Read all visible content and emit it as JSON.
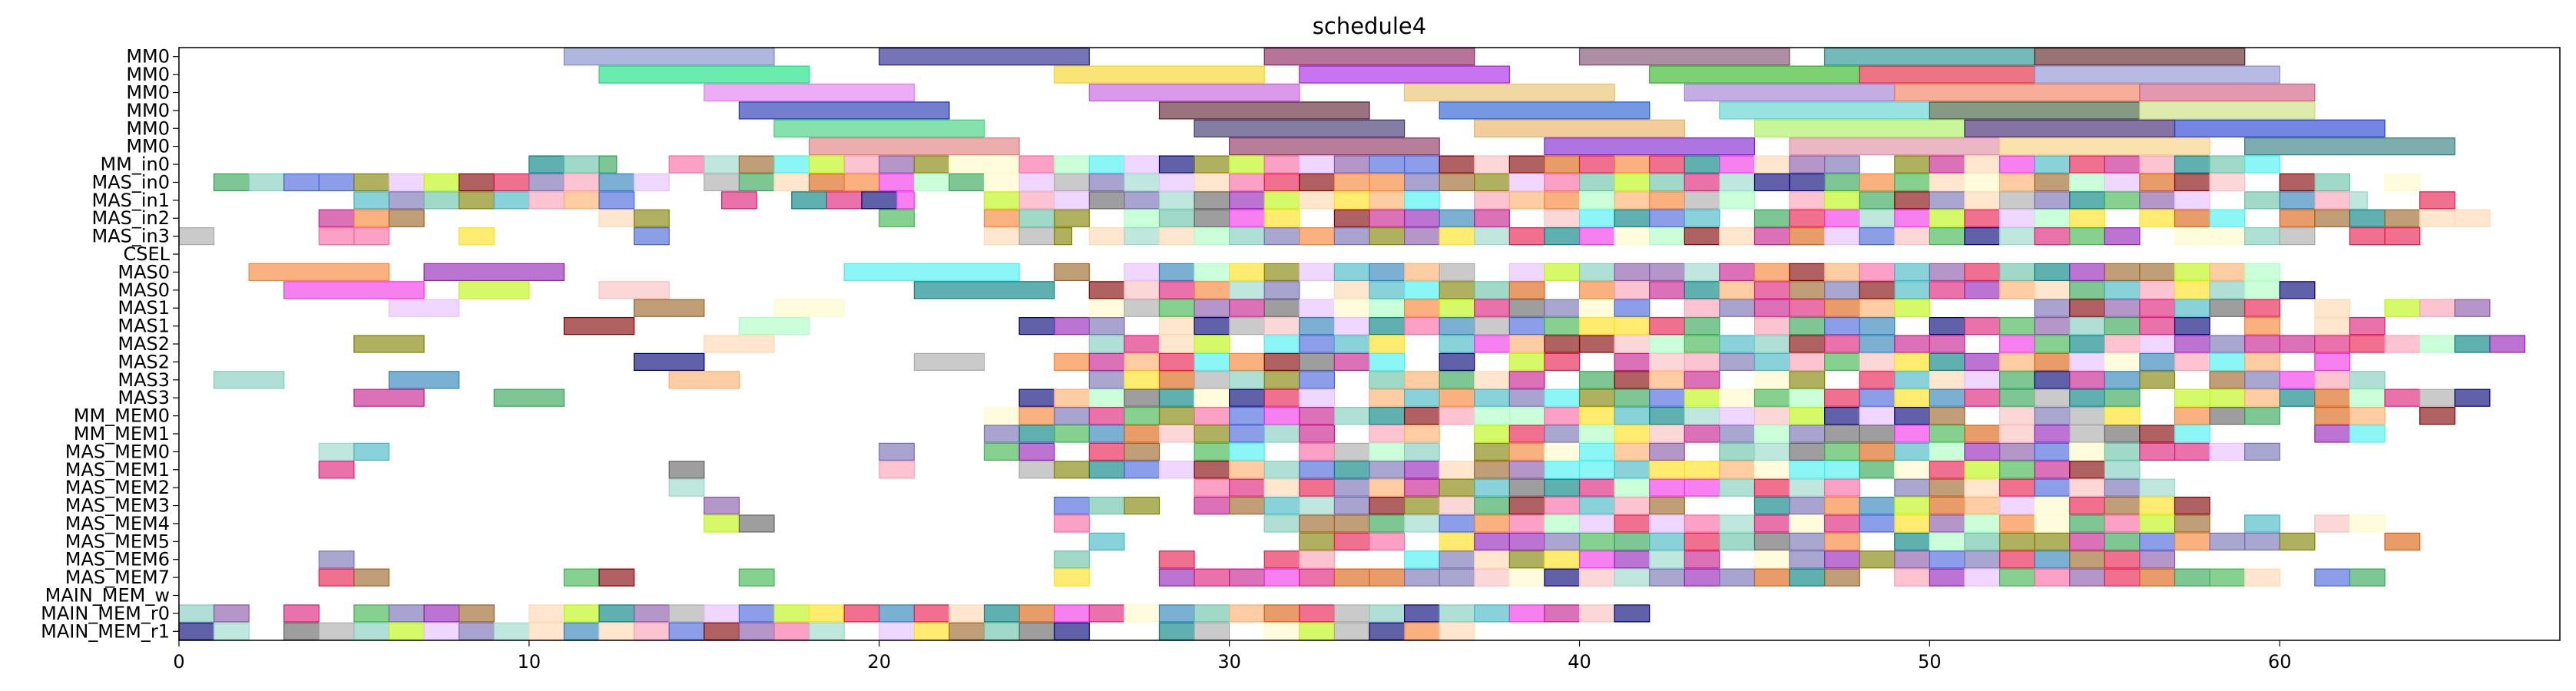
{
  "chart_data": {
    "type": "gantt",
    "title": "schedule4",
    "xlabel": "",
    "ylabel": "",
    "xlim": [
      0,
      68
    ],
    "x_ticks": [
      0,
      10,
      20,
      30,
      40,
      50,
      60
    ],
    "grid": false,
    "legend": "none",
    "rows": [
      "MM0",
      "MM0",
      "MM0",
      "MM0",
      "MM0",
      "MM0",
      "MM_in0",
      "MAS_in0",
      "MAS_in1",
      "MAS_in2",
      "MAS_in3",
      "CSEL",
      "MAS0",
      "MAS0",
      "MAS1",
      "MAS1",
      "MAS2",
      "MAS2",
      "MAS3",
      "MAS3",
      "MM_MEM0",
      "MM_MEM1",
      "MAS_MEM0",
      "MAS_MEM1",
      "MAS_MEM2",
      "MAS_MEM3",
      "MAS_MEM4",
      "MAS_MEM5",
      "MAS_MEM6",
      "MAS_MEM7",
      "MAIN_MEM_w",
      "MAIN_MEM_r0",
      "MAIN_MEM_r1"
    ],
    "bar_opacity": 0.62,
    "explicit_tasks": [
      [
        0,
        11,
        17,
        "#7f8bcc"
      ],
      [
        0,
        20,
        26,
        "#1f1f8a"
      ],
      [
        0,
        31,
        37,
        "#8a1f5a"
      ],
      [
        0,
        40,
        46,
        "#7a4a6a"
      ],
      [
        0,
        47,
        53,
        "#1f8f8f"
      ],
      [
        0,
        53,
        59,
        "#5a1f1f"
      ],
      [
        1,
        12,
        18,
        "#0fe07a"
      ],
      [
        1,
        25,
        31,
        "#f5d520"
      ],
      [
        1,
        32,
        38,
        "#a61fe6"
      ],
      [
        1,
        42,
        48,
        "#2db41f"
      ],
      [
        1,
        48,
        53,
        "#e01f3a"
      ],
      [
        1,
        53,
        60,
        "#8a8fd0"
      ],
      [
        2,
        15,
        21,
        "#e07af0"
      ],
      [
        2,
        26,
        32,
        "#c55ae0"
      ],
      [
        2,
        35,
        41,
        "#e8c06a"
      ],
      [
        2,
        43,
        49,
        "#a07ad0"
      ],
      [
        2,
        49,
        56,
        "#f07a5a"
      ],
      [
        2,
        56,
        61,
        "#d05a80"
      ],
      [
        3,
        16,
        22,
        "#1f2fb0"
      ],
      [
        3,
        28,
        34,
        "#5a1f2f"
      ],
      [
        3,
        36,
        42,
        "#1f5ad0"
      ],
      [
        3,
        44,
        50,
        "#5ad0d0"
      ],
      [
        3,
        50,
        56,
        "#3a5a3a"
      ],
      [
        3,
        56,
        61,
        "#c8e07a"
      ],
      [
        4,
        17,
        23,
        "#3ad07a"
      ],
      [
        4,
        29,
        35,
        "#3a2f6a"
      ],
      [
        4,
        37,
        43,
        "#e8b05a"
      ],
      [
        4,
        45,
        51,
        "#a8f05a"
      ],
      [
        4,
        51,
        57,
        "#3a1f6a"
      ],
      [
        4,
        57,
        63,
        "#1f3ad0"
      ],
      [
        5,
        18,
        24,
        "#e07a7a"
      ],
      [
        5,
        30,
        36,
        "#8a2f5a"
      ],
      [
        5,
        39,
        45,
        "#7a1fd0"
      ],
      [
        5,
        46,
        52,
        "#e08aa0"
      ],
      [
        5,
        52,
        58,
        "#f5d07a"
      ],
      [
        5,
        59,
        65,
        "#2f7a7a"
      ]
    ],
    "auto_segments": [
      [
        6,
        10,
        12.5,
        1
      ],
      [
        6,
        14,
        60,
        1
      ],
      [
        7,
        1,
        64,
        1
      ],
      [
        8,
        5,
        13,
        3
      ],
      [
        8,
        15.5,
        21,
        2
      ],
      [
        8,
        23,
        62.5,
        1
      ],
      [
        8,
        64,
        65,
        0
      ],
      [
        9,
        4,
        7,
        3
      ],
      [
        9,
        12,
        15,
        3
      ],
      [
        9,
        20,
        21,
        0
      ],
      [
        9,
        23,
        66,
        1
      ],
      [
        10,
        0,
        2,
        3
      ],
      [
        10,
        4,
        6,
        1
      ],
      [
        10,
        8,
        9,
        0
      ],
      [
        10,
        13,
        14,
        0
      ],
      [
        10,
        23,
        25.5,
        1
      ],
      [
        10,
        26,
        64,
        1
      ],
      [
        12,
        2,
        6,
        0
      ],
      [
        12,
        7,
        11,
        0
      ],
      [
        12,
        19,
        24,
        0
      ],
      [
        12,
        25,
        60,
        1
      ],
      [
        13,
        3,
        7,
        0
      ],
      [
        13,
        8,
        10,
        0
      ],
      [
        13,
        12,
        14,
        0
      ],
      [
        13,
        21,
        25,
        0
      ],
      [
        13,
        26,
        61,
        1
      ],
      [
        14,
        6,
        8,
        0
      ],
      [
        14,
        13,
        15,
        0
      ],
      [
        14,
        17,
        19,
        0
      ],
      [
        14,
        26,
        50,
        1
      ],
      [
        14,
        52,
        66,
        1
      ],
      [
        15,
        11,
        13,
        0
      ],
      [
        15,
        16,
        18,
        0
      ],
      [
        15,
        24,
        64,
        1
      ],
      [
        16,
        5,
        7,
        0
      ],
      [
        16,
        15,
        17,
        0
      ],
      [
        16,
        24,
        51,
        1
      ],
      [
        16,
        52,
        68,
        1
      ],
      [
        17,
        13,
        15,
        0
      ],
      [
        17,
        21,
        23,
        0
      ],
      [
        17,
        25,
        62,
        1
      ],
      [
        18,
        1,
        3,
        0
      ],
      [
        18,
        6,
        8,
        0
      ],
      [
        18,
        14,
        16,
        0
      ],
      [
        18,
        26,
        63,
        1
      ],
      [
        19,
        5,
        7,
        0
      ],
      [
        19,
        9,
        11,
        0
      ],
      [
        19,
        24,
        27,
        1
      ],
      [
        19,
        27,
        66,
        1
      ],
      [
        20,
        23,
        65,
        1
      ],
      [
        21,
        23,
        60,
        1
      ],
      [
        21,
        60,
        65,
        1
      ],
      [
        22,
        4,
        6,
        1
      ],
      [
        22,
        20,
        21,
        0
      ],
      [
        22,
        23,
        57,
        1
      ],
      [
        22,
        57,
        60,
        1
      ],
      [
        23,
        4,
        5,
        0
      ],
      [
        23,
        14,
        15,
        0
      ],
      [
        23,
        20,
        21,
        0
      ],
      [
        23,
        24,
        30,
        1
      ],
      [
        23,
        30,
        56,
        1
      ],
      [
        24,
        14,
        15,
        0
      ],
      [
        24,
        29,
        57,
        1
      ],
      [
        25,
        15,
        16,
        0
      ],
      [
        25,
        25,
        58,
        1
      ],
      [
        26,
        15,
        17,
        1
      ],
      [
        26,
        25,
        26,
        0
      ],
      [
        26,
        31,
        57,
        1
      ],
      [
        26,
        57,
        63,
        1
      ],
      [
        27,
        26,
        27,
        0
      ],
      [
        27,
        32,
        35,
        1
      ],
      [
        27,
        36,
        48,
        1
      ],
      [
        27,
        49,
        61,
        1
      ],
      [
        27,
        63,
        64,
        0
      ],
      [
        28,
        4,
        5,
        0
      ],
      [
        28,
        25,
        26,
        0
      ],
      [
        28,
        28,
        29,
        0
      ],
      [
        28,
        31,
        34,
        1
      ],
      [
        28,
        35,
        57,
        1
      ],
      [
        29,
        4,
        6,
        1
      ],
      [
        29,
        10,
        13,
        1
      ],
      [
        29,
        16,
        17,
        0
      ],
      [
        29,
        25,
        26,
        0
      ],
      [
        29,
        28,
        60,
        1
      ],
      [
        29,
        61,
        63,
        1
      ],
      [
        31,
        0,
        42,
        1
      ],
      [
        32,
        0,
        37,
        1
      ]
    ],
    "palette": [
      "#e6194b",
      "#3cb44b",
      "#ffe119",
      "#4363d8",
      "#f58231",
      "#911eb4",
      "#46f0f0",
      "#f032e6",
      "#bcf60c",
      "#fabebe",
      "#008080",
      "#e6beff",
      "#9a6324",
      "#fffac8",
      "#800000",
      "#aaffc3",
      "#808000",
      "#ffd8b1",
      "#000075",
      "#a9a9a9",
      "#7fcdbb",
      "#2c7fb8",
      "#fdae6b",
      "#c51b8a",
      "#31a354",
      "#756bb1",
      "#dd1c77",
      "#636363",
      "#fa9fb5",
      "#99d8c9",
      "#8856a7",
      "#f768a1",
      "#41b6c4",
      "#d95f0e",
      "#7570b3",
      "#66c2a5"
    ]
  }
}
